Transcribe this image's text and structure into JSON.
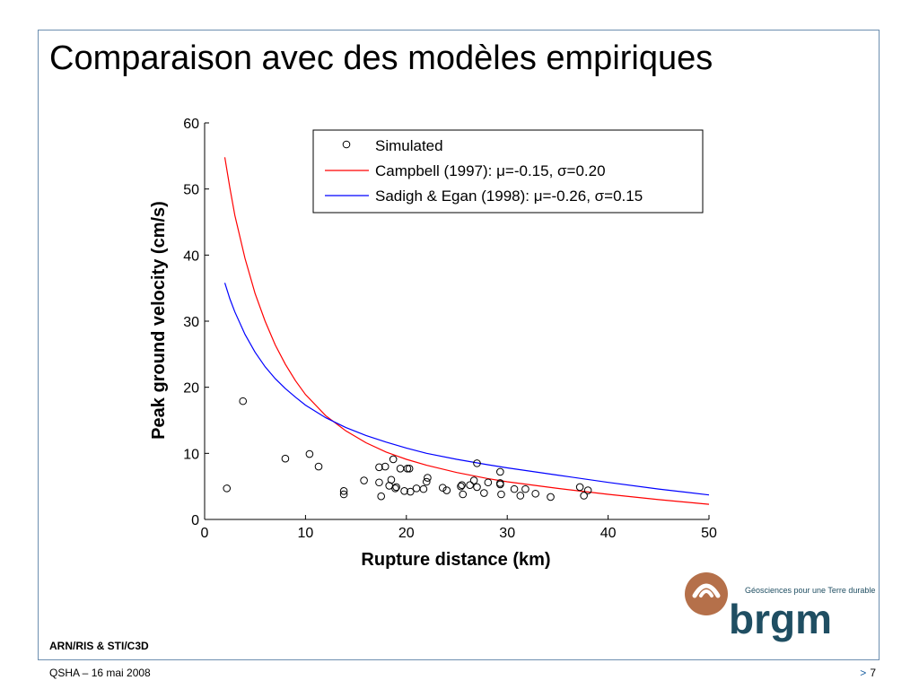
{
  "slide": {
    "title": "Comparaison avec des modèles empiriques",
    "footer_dept": "ARN/RIS & STI/C3D",
    "footer_date": "QSHA – 16 mai 2008",
    "page_arrow": ">",
    "page_number": "7"
  },
  "logo": {
    "name": "brgm",
    "tagline": "Géosciences pour une Terre durable",
    "colors": {
      "swirl": "#b5704a",
      "text": "#1f4e62"
    }
  },
  "chart_data": {
    "type": "scatter",
    "title": "",
    "xlabel": "Rupture distance (km)",
    "ylabel": "Peak ground velocity (cm/s)",
    "xlim": [
      0,
      50
    ],
    "ylim": [
      0,
      60
    ],
    "xticks": [
      0,
      10,
      20,
      30,
      40,
      50
    ],
    "yticks": [
      0,
      10,
      20,
      30,
      40,
      50,
      60
    ],
    "grid": false,
    "legend_position": "top-right",
    "series": [
      {
        "name": "Simulated",
        "kind": "markers",
        "marker": "open-circle",
        "color": "#000000",
        "points": [
          [
            2.2,
            4.7
          ],
          [
            3.8,
            17.9
          ],
          [
            8.0,
            9.2
          ],
          [
            10.4,
            9.9
          ],
          [
            11.3,
            8.0
          ],
          [
            13.8,
            4.3
          ],
          [
            13.8,
            3.8
          ],
          [
            15.8,
            5.9
          ],
          [
            17.3,
            7.9
          ],
          [
            17.3,
            5.6
          ],
          [
            17.5,
            3.5
          ],
          [
            17.9,
            8.0
          ],
          [
            18.3,
            5.1
          ],
          [
            18.5,
            6.0
          ],
          [
            18.7,
            9.1
          ],
          [
            18.9,
            4.7
          ],
          [
            19.0,
            4.9
          ],
          [
            19.4,
            7.7
          ],
          [
            19.8,
            4.3
          ],
          [
            20.1,
            7.7
          ],
          [
            20.3,
            7.7
          ],
          [
            20.4,
            4.2
          ],
          [
            21.0,
            4.7
          ],
          [
            21.7,
            4.6
          ],
          [
            22.0,
            5.7
          ],
          [
            22.1,
            6.3
          ],
          [
            23.6,
            4.8
          ],
          [
            24.0,
            4.4
          ],
          [
            25.4,
            5.0
          ],
          [
            25.5,
            5.2
          ],
          [
            25.6,
            3.8
          ],
          [
            26.3,
            5.2
          ],
          [
            26.7,
            5.9
          ],
          [
            27.0,
            8.5
          ],
          [
            27.0,
            4.9
          ],
          [
            27.7,
            4.0
          ],
          [
            28.1,
            5.6
          ],
          [
            29.3,
            7.2
          ],
          [
            29.3,
            5.5
          ],
          [
            29.3,
            5.3
          ],
          [
            29.4,
            3.8
          ],
          [
            30.7,
            4.6
          ],
          [
            31.3,
            3.6
          ],
          [
            31.8,
            4.6
          ],
          [
            32.8,
            3.9
          ],
          [
            34.3,
            3.4
          ],
          [
            37.2,
            4.9
          ],
          [
            37.6,
            3.6
          ],
          [
            38.0,
            4.4
          ]
        ]
      },
      {
        "name": "Campbell (1997): μ=-0.15, σ=0.20",
        "kind": "line",
        "color": "#ff0000",
        "x": [
          2,
          2.5,
          3,
          4,
          5,
          6,
          7,
          8,
          9,
          10,
          12,
          14,
          16,
          18,
          20,
          22,
          25,
          28,
          30,
          35,
          40,
          45,
          50
        ],
        "y": [
          54.8,
          50.2,
          46.0,
          39.5,
          34.2,
          30.0,
          26.4,
          23.5,
          21.0,
          18.9,
          15.7,
          13.4,
          11.6,
          10.2,
          9.1,
          8.2,
          7.1,
          6.2,
          5.7,
          4.7,
          3.8,
          3.0,
          2.3
        ]
      },
      {
        "name": "Sadigh & Egan (1998): μ=-0.26, σ=0.15",
        "kind": "line",
        "color": "#0000ff",
        "x": [
          2,
          2.5,
          3,
          4,
          5,
          6,
          7,
          8,
          9,
          10,
          12,
          14,
          16,
          18,
          20,
          22,
          25,
          28,
          30,
          35,
          40,
          45,
          50
        ],
        "y": [
          35.8,
          33.4,
          31.4,
          28.0,
          25.3,
          23.1,
          21.3,
          19.8,
          18.5,
          17.3,
          15.4,
          13.9,
          12.7,
          11.7,
          10.8,
          10.0,
          9.1,
          8.3,
          7.8,
          6.7,
          5.6,
          4.6,
          3.7
        ]
      }
    ]
  }
}
